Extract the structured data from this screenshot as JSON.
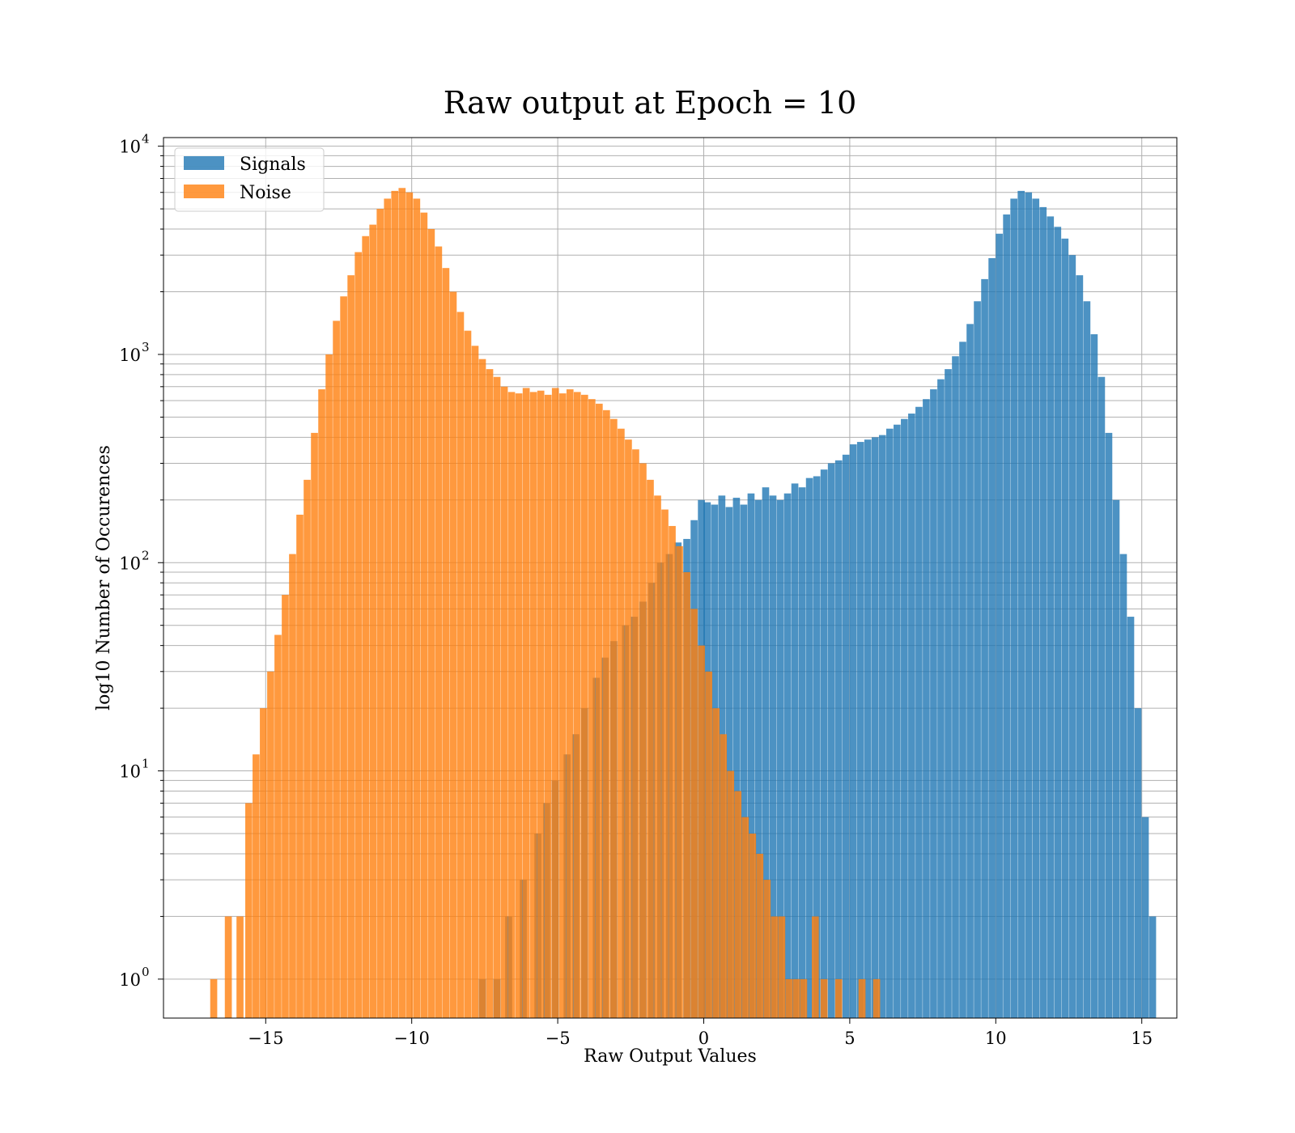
{
  "chart_data": {
    "type": "histogram",
    "title": "Raw output at Epoch = 10",
    "xlabel": "Raw Output Values",
    "ylabel": "log10 Number of Occurences",
    "xlim": [
      -18.5,
      16.2
    ],
    "ylim": [
      0.65,
      11000
    ],
    "yscale": "log",
    "grid": true,
    "legend_position": "top-left",
    "x_ticks": [
      {
        "value": -15,
        "label": "−15"
      },
      {
        "value": -10,
        "label": "−10"
      },
      {
        "value": -5,
        "label": "−5"
      },
      {
        "value": 0,
        "label": "0"
      },
      {
        "value": 5,
        "label": "5"
      },
      {
        "value": 10,
        "label": "10"
      },
      {
        "value": 15,
        "label": "15"
      }
    ],
    "y_ticks": [
      {
        "value": 1,
        "base": "10",
        "exp": "0"
      },
      {
        "value": 10,
        "base": "10",
        "exp": "1"
      },
      {
        "value": 100,
        "base": "10",
        "exp": "2"
      },
      {
        "value": 1000,
        "base": "10",
        "exp": "3"
      },
      {
        "value": 10000,
        "base": "10",
        "exp": "4"
      }
    ],
    "series": [
      {
        "name": "Signals",
        "color": "#1f77b4",
        "alpha": 0.8,
        "bin_width": 0.24,
        "bins": [
          [
            -7.7,
            1
          ],
          [
            -7.2,
            1
          ],
          [
            -6.8,
            2
          ],
          [
            -6.3,
            3
          ],
          [
            -5.8,
            5
          ],
          [
            -5.5,
            7
          ],
          [
            -5.2,
            9
          ],
          [
            -4.8,
            12
          ],
          [
            -4.5,
            15
          ],
          [
            -4.2,
            20
          ],
          [
            -3.8,
            28
          ],
          [
            -3.5,
            35
          ],
          [
            -3.2,
            42
          ],
          [
            -2.8,
            50
          ],
          [
            -2.5,
            55
          ],
          [
            -2.2,
            65
          ],
          [
            -1.9,
            80
          ],
          [
            -1.6,
            100
          ],
          [
            -1.3,
            110
          ],
          [
            -1.0,
            125
          ],
          [
            -0.7,
            130
          ],
          [
            -0.45,
            160
          ],
          [
            -0.2,
            200
          ],
          [
            0.0,
            195
          ],
          [
            0.25,
            190
          ],
          [
            0.5,
            210
          ],
          [
            0.75,
            185
          ],
          [
            1.0,
            205
          ],
          [
            1.25,
            190
          ],
          [
            1.5,
            215
          ],
          [
            1.75,
            200
          ],
          [
            2.0,
            230
          ],
          [
            2.25,
            210
          ],
          [
            2.5,
            200
          ],
          [
            2.75,
            215
          ],
          [
            3.0,
            240
          ],
          [
            3.25,
            230
          ],
          [
            3.5,
            255
          ],
          [
            3.75,
            260
          ],
          [
            4.0,
            280
          ],
          [
            4.25,
            300
          ],
          [
            4.5,
            310
          ],
          [
            4.75,
            330
          ],
          [
            5.0,
            370
          ],
          [
            5.25,
            380
          ],
          [
            5.5,
            390
          ],
          [
            5.75,
            400
          ],
          [
            6.0,
            410
          ],
          [
            6.25,
            440
          ],
          [
            6.5,
            460
          ],
          [
            6.75,
            490
          ],
          [
            7.0,
            520
          ],
          [
            7.25,
            560
          ],
          [
            7.5,
            610
          ],
          [
            7.75,
            680
          ],
          [
            8.0,
            760
          ],
          [
            8.25,
            850
          ],
          [
            8.5,
            980
          ],
          [
            8.75,
            1150
          ],
          [
            9.0,
            1400
          ],
          [
            9.25,
            1800
          ],
          [
            9.5,
            2300
          ],
          [
            9.75,
            2900
          ],
          [
            10.0,
            3800
          ],
          [
            10.25,
            4700
          ],
          [
            10.5,
            5600
          ],
          [
            10.75,
            6100
          ],
          [
            11.0,
            6000
          ],
          [
            11.25,
            5600
          ],
          [
            11.5,
            5100
          ],
          [
            11.75,
            4600
          ],
          [
            12.0,
            4100
          ],
          [
            12.25,
            3600
          ],
          [
            12.5,
            3000
          ],
          [
            12.75,
            2400
          ],
          [
            13.0,
            1800
          ],
          [
            13.25,
            1250
          ],
          [
            13.5,
            780
          ],
          [
            13.75,
            420
          ],
          [
            14.0,
            200
          ],
          [
            14.25,
            110
          ],
          [
            14.5,
            55
          ],
          [
            14.75,
            20
          ],
          [
            15.0,
            6
          ],
          [
            15.25,
            2
          ]
        ]
      },
      {
        "name": "Noise",
        "color": "#ff7f0e",
        "alpha": 0.8,
        "bin_width": 0.24,
        "bins": [
          [
            -16.9,
            1
          ],
          [
            -16.4,
            2
          ],
          [
            -16.0,
            2
          ],
          [
            -15.7,
            7
          ],
          [
            -15.45,
            12
          ],
          [
            -15.2,
            20
          ],
          [
            -14.95,
            30
          ],
          [
            -14.7,
            45
          ],
          [
            -14.45,
            70
          ],
          [
            -14.2,
            110
          ],
          [
            -13.95,
            170
          ],
          [
            -13.7,
            250
          ],
          [
            -13.45,
            420
          ],
          [
            -13.2,
            680
          ],
          [
            -12.95,
            1000
          ],
          [
            -12.7,
            1450
          ],
          [
            -12.45,
            1900
          ],
          [
            -12.2,
            2400
          ],
          [
            -11.95,
            3100
          ],
          [
            -11.7,
            3700
          ],
          [
            -11.45,
            4200
          ],
          [
            -11.2,
            5000
          ],
          [
            -10.95,
            5600
          ],
          [
            -10.7,
            6100
          ],
          [
            -10.45,
            6300
          ],
          [
            -10.2,
            6000
          ],
          [
            -9.95,
            5600
          ],
          [
            -9.7,
            4800
          ],
          [
            -9.45,
            4000
          ],
          [
            -9.2,
            3300
          ],
          [
            -8.95,
            2600
          ],
          [
            -8.7,
            2000
          ],
          [
            -8.45,
            1600
          ],
          [
            -8.2,
            1300
          ],
          [
            -7.95,
            1100
          ],
          [
            -7.7,
            950
          ],
          [
            -7.45,
            850
          ],
          [
            -7.2,
            780
          ],
          [
            -6.95,
            700
          ],
          [
            -6.7,
            660
          ],
          [
            -6.45,
            650
          ],
          [
            -6.2,
            690
          ],
          [
            -5.95,
            660
          ],
          [
            -5.7,
            670
          ],
          [
            -5.45,
            640
          ],
          [
            -5.2,
            690
          ],
          [
            -4.95,
            650
          ],
          [
            -4.7,
            680
          ],
          [
            -4.45,
            660
          ],
          [
            -4.2,
            640
          ],
          [
            -3.95,
            610
          ],
          [
            -3.7,
            580
          ],
          [
            -3.45,
            540
          ],
          [
            -3.2,
            490
          ],
          [
            -2.95,
            440
          ],
          [
            -2.7,
            390
          ],
          [
            -2.45,
            350
          ],
          [
            -2.2,
            300
          ],
          [
            -1.95,
            250
          ],
          [
            -1.7,
            210
          ],
          [
            -1.45,
            180
          ],
          [
            -1.2,
            150
          ],
          [
            -0.95,
            120
          ],
          [
            -0.7,
            90
          ],
          [
            -0.45,
            60
          ],
          [
            -0.2,
            40
          ],
          [
            0.05,
            30
          ],
          [
            0.3,
            20
          ],
          [
            0.55,
            15
          ],
          [
            0.8,
            10
          ],
          [
            1.05,
            8
          ],
          [
            1.3,
            6
          ],
          [
            1.55,
            5
          ],
          [
            1.8,
            4
          ],
          [
            2.05,
            3
          ],
          [
            2.3,
            2
          ],
          [
            2.55,
            2
          ],
          [
            2.8,
            1
          ],
          [
            3.05,
            1
          ],
          [
            3.3,
            1
          ],
          [
            3.7,
            2
          ],
          [
            4.0,
            1
          ],
          [
            4.5,
            1
          ],
          [
            5.3,
            1
          ],
          [
            5.8,
            1
          ]
        ]
      }
    ]
  }
}
